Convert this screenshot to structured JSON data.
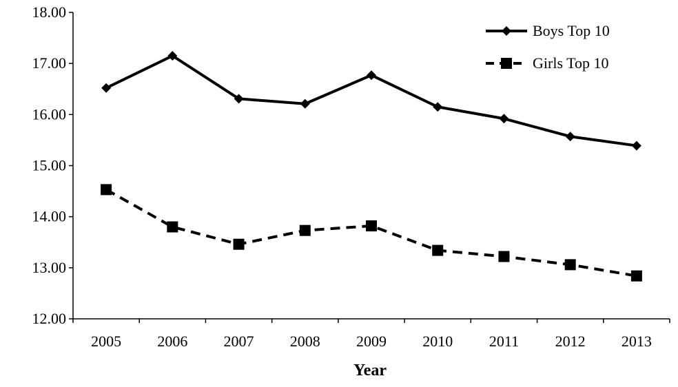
{
  "chart_data": {
    "type": "line",
    "title": "",
    "xlabel": "Year",
    "ylabel": "",
    "categories": [
      "2005",
      "2006",
      "2007",
      "2008",
      "2009",
      "2010",
      "2011",
      "2012",
      "2013"
    ],
    "ylim": [
      12.0,
      18.0
    ],
    "yticks": [
      "12.00",
      "13.00",
      "14.00",
      "15.00",
      "16.00",
      "17.00",
      "18.00"
    ],
    "grid": false,
    "legend_position": "top-right",
    "series": [
      {
        "name": "Boys Top 10",
        "marker": "diamond",
        "line_style": "solid",
        "color": "#000000",
        "values": [
          16.52,
          17.15,
          16.31,
          16.21,
          16.77,
          16.15,
          15.92,
          15.57,
          15.39
        ]
      },
      {
        "name": "Girls Top 10",
        "marker": "square",
        "line_style": "dashed",
        "color": "#000000",
        "values": [
          14.53,
          13.8,
          13.46,
          13.73,
          13.82,
          13.34,
          13.22,
          13.06,
          12.84
        ]
      }
    ]
  }
}
